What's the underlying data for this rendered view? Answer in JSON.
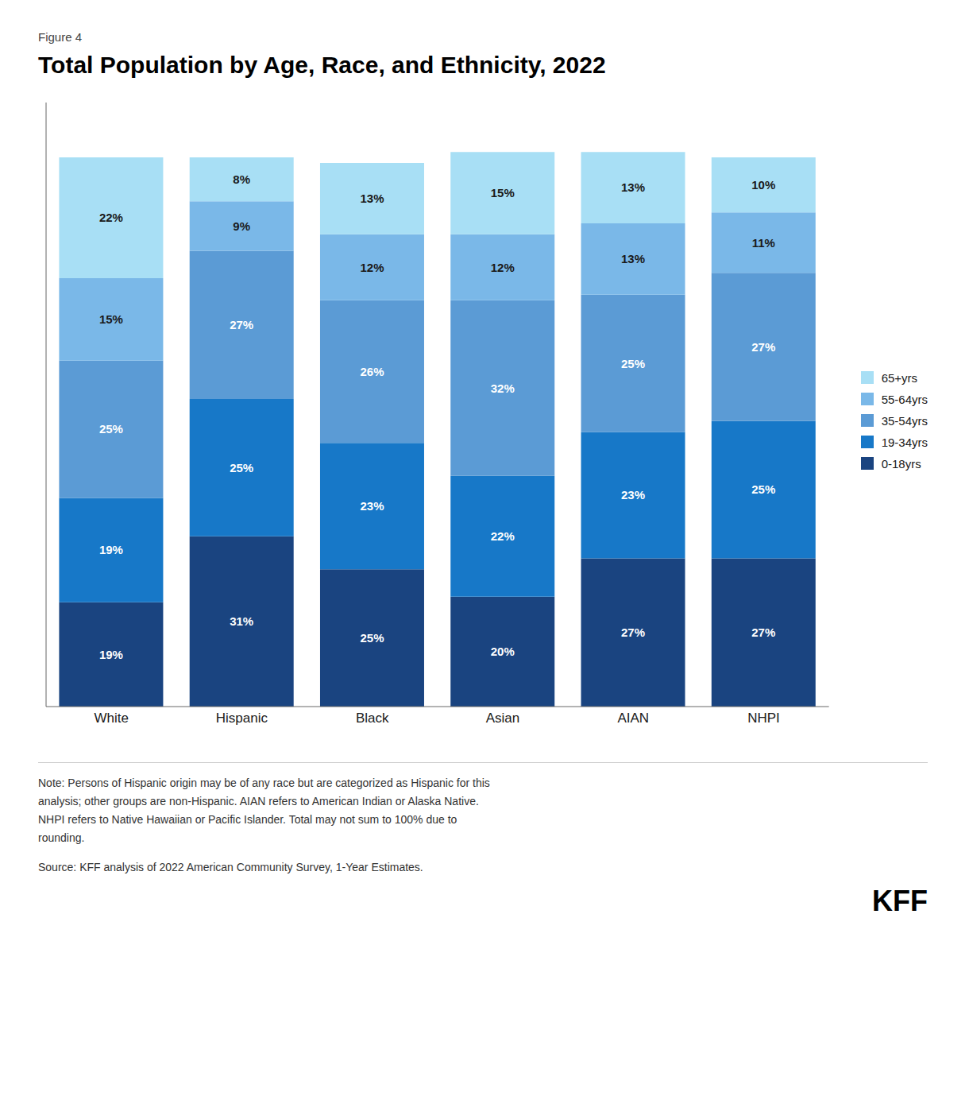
{
  "chart_data": {
    "type": "bar",
    "title": "Total Population by Age, Race, and Ethnicity, 2022",
    "annotations": [
      "Figure 4",
      "Note: Persons of Hispanic origin may be of any race but are categorized as Hispanic for this\nanalysis; other groups are non-Hispanic. AIAN refers to American Indian or Alaska Native.\nNHPI refers to Native Hawaiian or Pacific Islander. Total may not sum to 100% due to\nrounding.",
      "Source: KFF analysis of 2022 American Community Survey, 1-Year Estimates.",
      "KFF"
    ],
    "categories": [
      "White",
      "Hispanic",
      "Black",
      "Asian",
      "AIAN",
      "NHPI"
    ],
    "series": [
      {
        "name": "0-18yrs",
        "color": "#1a4480",
        "values": [
          19,
          31,
          25,
          20,
          27,
          27
        ],
        "value_labels": [
          "19%",
          "31%",
          "25%",
          "20%",
          "27%",
          "27%"
        ]
      },
      {
        "name": "19-34yrs",
        "color": "#1778c8",
        "values": [
          19,
          25,
          23,
          22,
          23,
          25
        ],
        "value_labels": [
          "19%",
          "25%",
          "23%",
          "22%",
          "23%",
          "25%"
        ]
      },
      {
        "name": "35-54yrs",
        "color": "#5b9bd5",
        "values": [
          25,
          27,
          26,
          32,
          25,
          27
        ],
        "value_labels": [
          "25%",
          "27%",
          "26%",
          "32%",
          "25%",
          "27%"
        ]
      },
      {
        "name": "55-64yrs",
        "color": "#7ab8e8",
        "values": [
          15,
          9,
          12,
          12,
          13,
          11
        ],
        "value_labels": [
          "15%",
          "9%",
          "12%",
          "12%",
          "13%",
          "11%"
        ]
      },
      {
        "name": "65+yrs",
        "color": "#a8dff5",
        "values": [
          22,
          8,
          13,
          15,
          13,
          10
        ],
        "value_labels": [
          "22%",
          "8%",
          "13%",
          "15%",
          "13%",
          "10%"
        ]
      }
    ],
    "ylim": [
      0,
      110
    ],
    "stacked": true,
    "data_labels": true,
    "grid": false,
    "legend": "right",
    "tick_labels": "x"
  }
}
